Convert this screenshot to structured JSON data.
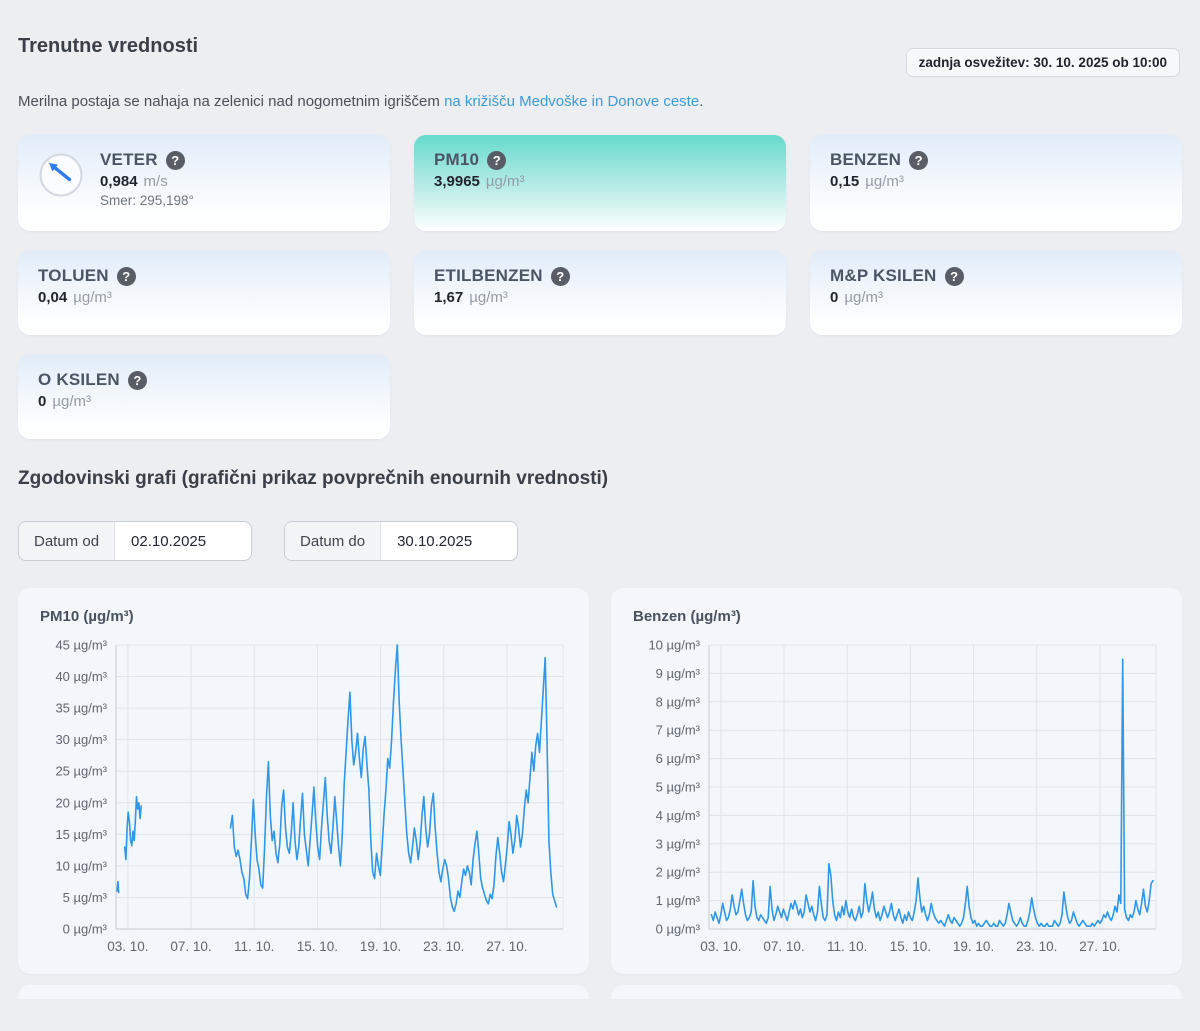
{
  "header": {
    "last_update": "zadnja osvežitev: 30. 10. 2025 ob 10:00",
    "title": "Trenutne vrednosti",
    "description_prefix": "Merilna postaja se nahaja na zelenici nad nogometnim igriščem ",
    "description_link": "na križišču Medvoške in Donove ceste",
    "description_suffix": ".",
    "help_glyph": "?"
  },
  "cards": [
    {
      "title": "VETER",
      "value": "0,984",
      "unit": "m/s",
      "sub": "Smer: 295,198°"
    },
    {
      "title": "PM10",
      "value": "3,9965",
      "unit": "µg/m³",
      "highlighted": true
    },
    {
      "title": "BENZEN",
      "value": "0,15",
      "unit": "µg/m³"
    },
    {
      "title": "TOLUEN",
      "value": "0,04",
      "unit": "µg/m³"
    },
    {
      "title": "ETILBENZEN",
      "value": "1,67",
      "unit": "µg/m³"
    },
    {
      "title": "M&P KSILEN",
      "value": "0",
      "unit": "µg/m³"
    },
    {
      "title": "O KSILEN",
      "value": "0",
      "unit": "µg/m³"
    }
  ],
  "history": {
    "title": "Zgodovinski grafi (grafični prikaz povprečnih enournih vrednosti)",
    "date_from_label": "Datum od",
    "date_from_value": "02.10.2025",
    "date_to_label": "Datum do",
    "date_to_value": "30.10.2025"
  },
  "colors": {
    "accent_teal": "#67dacd",
    "line_blue": "#2f97e8",
    "grid": "#e0e4ea",
    "axis": "#c6cbd3",
    "tick_text": "#60666f",
    "link_blue": "#3e9bd6"
  },
  "chart_data": [
    {
      "type": "line",
      "title": "PM10 (µg/m³)",
      "ylabel": "µg/m³",
      "ylim": [
        0,
        45
      ],
      "ytick_step": 5,
      "ytick_suffix": " µg/m³",
      "xlim": [
        2.25,
        30.55
      ],
      "x_unit": "day of October 2025",
      "xticks": [
        3,
        7,
        11,
        15,
        19,
        23,
        27
      ],
      "xtick_labels": [
        "03. 10.",
        "07. 10.",
        "11. 10.",
        "15. 10.",
        "19. 10.",
        "23. 10.",
        "27. 10."
      ],
      "grid": true,
      "legend": "none",
      "segments": [
        {
          "start": 2.32,
          "step": 0.05,
          "values": [
            6,
            7.5,
            5.8
          ]
        },
        {
          "start": 2.8,
          "step": 0.075,
          "values": [
            13,
            11,
            16,
            18.5,
            17,
            14,
            13.2,
            15.5,
            14,
            17,
            21,
            19,
            20,
            17.5,
            19.5
          ]
        },
        {
          "start": 9.5,
          "step": 0.12,
          "values": [
            16,
            18,
            13,
            11.5,
            12.5,
            11,
            9,
            8,
            5.5,
            4.8,
            8,
            14,
            20.5,
            15,
            11,
            9.5,
            7,
            6.5,
            13,
            21,
            26.5,
            18,
            14,
            15.5,
            12,
            10.5,
            13.5,
            19.5,
            22,
            16,
            13,
            12,
            15,
            20,
            14,
            11,
            13,
            17.5,
            21.5,
            15,
            12.5,
            10,
            14,
            18,
            22.5,
            17,
            13,
            11,
            16,
            20,
            24,
            18,
            14,
            12,
            16,
            21,
            17,
            13,
            10,
            15,
            23,
            28,
            33,
            37.5,
            30,
            26,
            28,
            31,
            27,
            24,
            28.5,
            30.5,
            26,
            22,
            14,
            9,
            8,
            12,
            10,
            8.5,
            13,
            18,
            22,
            27,
            25.5,
            30,
            36,
            41,
            45,
            36,
            30,
            25,
            20,
            15,
            12,
            10.5,
            13,
            16,
            14,
            11,
            13.5,
            18,
            21,
            16,
            13,
            15,
            19.5,
            21.5,
            16,
            12,
            9,
            7.5,
            9.5,
            11,
            10,
            8,
            5,
            3.5,
            2.8,
            4,
            6,
            5,
            7.5,
            9.5,
            8.5,
            10,
            9,
            7,
            11,
            13.5,
            15.5,
            12,
            8,
            6.5,
            5.5,
            4.5,
            4,
            5.5,
            4.8,
            7,
            11.5,
            14.5,
            12,
            9,
            7.5,
            10,
            13,
            17,
            15,
            12,
            14,
            18,
            16,
            13,
            15,
            19,
            22,
            20,
            24,
            28,
            25,
            29,
            31,
            28,
            33,
            38,
            43,
            30,
            14,
            9,
            5.5,
            4.5,
            3.5
          ]
        }
      ]
    },
    {
      "type": "line",
      "title": "Benzen (µg/m³)",
      "ylabel": "µg/m³",
      "ylim": [
        0,
        10
      ],
      "ytick_step": 1,
      "ytick_suffix": " µg/m³",
      "xlim": [
        2.25,
        30.55
      ],
      "x_unit": "day of October 2025",
      "xticks": [
        3,
        7,
        11,
        15,
        19,
        23,
        27
      ],
      "xtick_labels": [
        "03. 10.",
        "07. 10.",
        "11. 10.",
        "15. 10.",
        "19. 10.",
        "23. 10.",
        "27. 10."
      ],
      "grid": true,
      "legend": "none",
      "segments": [
        {
          "start": 2.4,
          "step": 0.12,
          "values": [
            0.5,
            0.3,
            0.6,
            0.4,
            0.2,
            0.5,
            0.9,
            0.6,
            0.3,
            0.4,
            0.7,
            1.2,
            0.8,
            0.5,
            0.6,
            1.0,
            1.4,
            0.9,
            0.5,
            0.3,
            0.4,
            0.6,
            1.7,
            0.8,
            0.4,
            0.3,
            0.5,
            0.4,
            0.3,
            0.2,
            0.4,
            1.5,
            0.7,
            0.3,
            0.5,
            0.8,
            0.6,
            0.4,
            0.7,
            0.5,
            0.3,
            0.6,
            0.9,
            0.7,
            1.0,
            0.8,
            0.5,
            0.7,
            0.4,
            0.6,
            1.2,
            0.9,
            0.6,
            0.8,
            0.5,
            0.3,
            0.6,
            1.5,
            0.9,
            0.4,
            0.3,
            0.5,
            2.3,
            1.9,
            1.0,
            0.5,
            0.3,
            0.6,
            0.4,
            0.8,
            0.5,
            1.0,
            0.6,
            0.4,
            0.7,
            0.4,
            0.3,
            0.5,
            0.8,
            0.4,
            0.6,
            1.6,
            1.0,
            0.6,
            0.9,
            1.3,
            0.7,
            0.4,
            0.6,
            0.3,
            0.5,
            0.8,
            0.6,
            0.4,
            0.6,
            0.9,
            0.5,
            0.3,
            0.5,
            0.7,
            0.4,
            0.2,
            0.5,
            0.3,
            0.6,
            0.4,
            0.3,
            0.6,
            1.0,
            1.8,
            1.1,
            0.6,
            0.8,
            0.5,
            0.3,
            0.5,
            0.9,
            0.6,
            0.4,
            0.3,
            0.2,
            0.3,
            0.2,
            0.1,
            0.3,
            0.5,
            0.3,
            0.2,
            0.4,
            0.3,
            0.2,
            0.1,
            0.2,
            0.4,
            0.9,
            1.5,
            0.8,
            0.4,
            0.2,
            0.3,
            0.1,
            0.2,
            0.1,
            0.1,
            0.2,
            0.3,
            0.2,
            0.1,
            0.1,
            0.2,
            0.1,
            0.1,
            0.3,
            0.2,
            0.1,
            0.2,
            0.5,
            0.9,
            0.6,
            0.3,
            0.2,
            0.1,
            0.2,
            0.4,
            0.2,
            0.1,
            0.1,
            0.3,
            0.6,
            1.1,
            0.7,
            0.4,
            0.2,
            0.1,
            0.2,
            0.1,
            0.1,
            0.2,
            0.1,
            0.1,
            0.1,
            0.3,
            0.2,
            0.1,
            0.2,
            0.5,
            1.3,
            0.8,
            0.4,
            0.2,
            0.3,
            0.6,
            0.4,
            0.2,
            0.1,
            0.2,
            0.3,
            0.2,
            0.1,
            0.1,
            0.1,
            0.2,
            0.1,
            0.2,
            0.3,
            0.2,
            0.3,
            0.5,
            0.4,
            0.6,
            0.4,
            0.3,
            0.5,
            0.8,
            0.6,
            1.2,
            0.9,
            9.5,
            0.7,
            0.4,
            0.3,
            0.5,
            0.4,
            0.6,
            1.0,
            0.7,
            0.5,
            0.9,
            1.4,
            0.8,
            0.6,
            1.0,
            1.6,
            1.7
          ]
        }
      ]
    }
  ]
}
